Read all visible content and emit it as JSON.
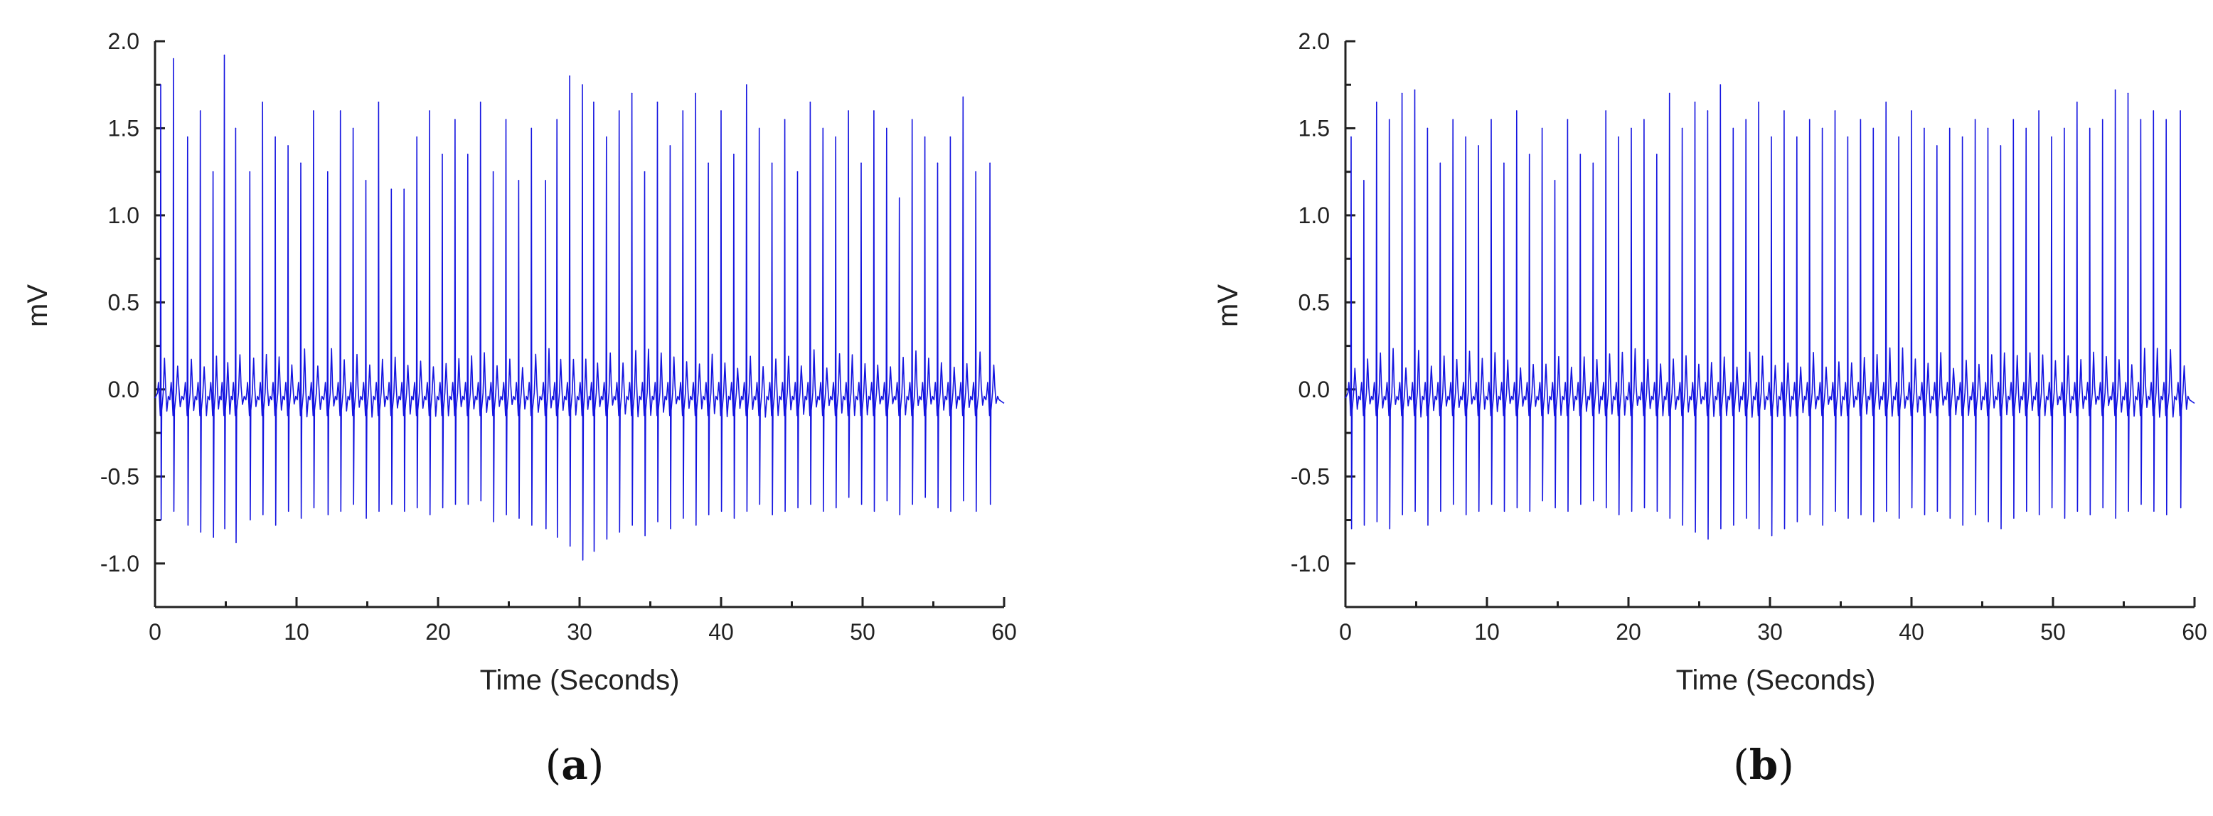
{
  "colors": {
    "signal": "#1414e0",
    "axis": "#222222"
  },
  "chart_data": [
    {
      "type": "line",
      "panel_label": {
        "open": "(",
        "letter": "a",
        "close": ")"
      },
      "xlabel": "Time (Seconds)",
      "ylabel": "mV",
      "xlim": [
        0,
        60
      ],
      "ylim": [
        -1.25,
        2.0
      ],
      "x_ticks": [
        "0",
        "10",
        "20",
        "30",
        "40",
        "50",
        "60"
      ],
      "y_ticks": [
        "-1.0",
        "-0.5",
        "0.0",
        "0.5",
        "1.0",
        "1.5",
        "2.0"
      ],
      "grid": false,
      "series": [
        {
          "beats": [
            {
              "t": 0.4,
              "r": 1.75,
              "s": -0.75
            },
            {
              "t": 1.3,
              "r": 1.9,
              "s": -0.7
            },
            {
              "t": 2.3,
              "r": 1.45,
              "s": -0.78
            },
            {
              "t": 3.2,
              "r": 1.6,
              "s": -0.82
            },
            {
              "t": 4.1,
              "r": 1.25,
              "s": -0.85
            },
            {
              "t": 4.9,
              "r": 1.92,
              "s": -0.8
            },
            {
              "t": 5.7,
              "r": 1.5,
              "s": -0.88
            },
            {
              "t": 6.7,
              "r": 1.25,
              "s": -0.75
            },
            {
              "t": 7.6,
              "r": 1.65,
              "s": -0.72
            },
            {
              "t": 8.5,
              "r": 1.45,
              "s": -0.78
            },
            {
              "t": 9.4,
              "r": 1.4,
              "s": -0.7
            },
            {
              "t": 10.3,
              "r": 1.3,
              "s": -0.74
            },
            {
              "t": 11.2,
              "r": 1.6,
              "s": -0.68
            },
            {
              "t": 12.2,
              "r": 1.25,
              "s": -0.72
            },
            {
              "t": 13.1,
              "r": 1.6,
              "s": -0.7
            },
            {
              "t": 14.0,
              "r": 1.5,
              "s": -0.66
            },
            {
              "t": 14.9,
              "r": 1.2,
              "s": -0.74
            },
            {
              "t": 15.8,
              "r": 1.65,
              "s": -0.7
            },
            {
              "t": 16.7,
              "r": 1.15,
              "s": -0.66
            },
            {
              "t": 17.6,
              "r": 1.15,
              "s": -0.7
            },
            {
              "t": 18.5,
              "r": 1.45,
              "s": -0.68
            },
            {
              "t": 19.4,
              "r": 1.6,
              "s": -0.72
            },
            {
              "t": 20.3,
              "r": 1.35,
              "s": -0.68
            },
            {
              "t": 21.2,
              "r": 1.55,
              "s": -0.66
            },
            {
              "t": 22.1,
              "r": 1.35,
              "s": -0.66
            },
            {
              "t": 23.0,
              "r": 1.65,
              "s": -0.64
            },
            {
              "t": 23.9,
              "r": 1.25,
              "s": -0.76
            },
            {
              "t": 24.8,
              "r": 1.55,
              "s": -0.72
            },
            {
              "t": 25.7,
              "r": 1.2,
              "s": -0.74
            },
            {
              "t": 26.6,
              "r": 1.5,
              "s": -0.78
            },
            {
              "t": 27.6,
              "r": 1.2,
              "s": -0.8
            },
            {
              "t": 28.4,
              "r": 1.55,
              "s": -0.85
            },
            {
              "t": 29.3,
              "r": 1.8,
              "s": -0.9
            },
            {
              "t": 30.2,
              "r": 1.75,
              "s": -0.98
            },
            {
              "t": 31.0,
              "r": 1.65,
              "s": -0.93
            },
            {
              "t": 31.9,
              "r": 1.45,
              "s": -0.86
            },
            {
              "t": 32.8,
              "r": 1.6,
              "s": -0.82
            },
            {
              "t": 33.7,
              "r": 1.7,
              "s": -0.78
            },
            {
              "t": 34.6,
              "r": 1.25,
              "s": -0.84
            },
            {
              "t": 35.5,
              "r": 1.65,
              "s": -0.76
            },
            {
              "t": 36.4,
              "r": 1.4,
              "s": -0.8
            },
            {
              "t": 37.3,
              "r": 1.6,
              "s": -0.74
            },
            {
              "t": 38.2,
              "r": 1.7,
              "s": -0.78
            },
            {
              "t": 39.1,
              "r": 1.3,
              "s": -0.72
            },
            {
              "t": 40.0,
              "r": 1.6,
              "s": -0.7
            },
            {
              "t": 40.9,
              "r": 1.35,
              "s": -0.74
            },
            {
              "t": 41.8,
              "r": 1.75,
              "s": -0.7
            },
            {
              "t": 42.7,
              "r": 1.5,
              "s": -0.66
            },
            {
              "t": 43.6,
              "r": 1.3,
              "s": -0.72
            },
            {
              "t": 44.5,
              "r": 1.55,
              "s": -0.7
            },
            {
              "t": 45.4,
              "r": 1.25,
              "s": -0.68
            },
            {
              "t": 46.3,
              "r": 1.65,
              "s": -0.66
            },
            {
              "t": 47.2,
              "r": 1.5,
              "s": -0.7
            },
            {
              "t": 48.1,
              "r": 1.45,
              "s": -0.68
            },
            {
              "t": 49.0,
              "r": 1.6,
              "s": -0.62
            },
            {
              "t": 49.9,
              "r": 1.3,
              "s": -0.66
            },
            {
              "t": 50.8,
              "r": 1.6,
              "s": -0.7
            },
            {
              "t": 51.7,
              "r": 1.5,
              "s": -0.64
            },
            {
              "t": 52.6,
              "r": 1.1,
              "s": -0.72
            },
            {
              "t": 53.5,
              "r": 1.55,
              "s": -0.66
            },
            {
              "t": 54.4,
              "r": 1.45,
              "s": -0.62
            },
            {
              "t": 55.3,
              "r": 1.3,
              "s": -0.68
            },
            {
              "t": 56.2,
              "r": 1.45,
              "s": -0.7
            },
            {
              "t": 57.1,
              "r": 1.68,
              "s": -0.64
            },
            {
              "t": 58.0,
              "r": 1.25,
              "s": -0.7
            },
            {
              "t": 59.0,
              "r": 1.3,
              "s": -0.66
            }
          ]
        }
      ]
    },
    {
      "type": "line",
      "panel_label": {
        "open": "(",
        "letter": "b",
        "close": ")"
      },
      "xlabel": "Time (Seconds)",
      "ylabel": "mV",
      "xlim": [
        0,
        60
      ],
      "ylim": [
        -1.25,
        2.0
      ],
      "x_ticks": [
        "0",
        "10",
        "20",
        "30",
        "40",
        "50",
        "60"
      ],
      "y_ticks": [
        "-1.0",
        "-0.5",
        "0.0",
        "0.5",
        "1.0",
        "1.5",
        "2.0"
      ],
      "grid": false,
      "series": [
        {
          "beats": [
            {
              "t": 0.4,
              "r": 1.45,
              "s": -0.8
            },
            {
              "t": 1.3,
              "r": 1.2,
              "s": -0.78
            },
            {
              "t": 2.2,
              "r": 1.65,
              "s": -0.76
            },
            {
              "t": 3.1,
              "r": 1.55,
              "s": -0.8
            },
            {
              "t": 4.0,
              "r": 1.7,
              "s": -0.72
            },
            {
              "t": 4.9,
              "r": 1.72,
              "s": -0.7
            },
            {
              "t": 5.8,
              "r": 1.5,
              "s": -0.78
            },
            {
              "t": 6.7,
              "r": 1.3,
              "s": -0.7
            },
            {
              "t": 7.6,
              "r": 1.55,
              "s": -0.66
            },
            {
              "t": 8.5,
              "r": 1.45,
              "s": -0.72
            },
            {
              "t": 9.4,
              "r": 1.4,
              "s": -0.7
            },
            {
              "t": 10.3,
              "r": 1.55,
              "s": -0.66
            },
            {
              "t": 11.2,
              "r": 1.3,
              "s": -0.7
            },
            {
              "t": 12.1,
              "r": 1.6,
              "s": -0.68
            },
            {
              "t": 13.0,
              "r": 1.35,
              "s": -0.7
            },
            {
              "t": 13.9,
              "r": 1.5,
              "s": -0.64
            },
            {
              "t": 14.8,
              "r": 1.2,
              "s": -0.68
            },
            {
              "t": 15.7,
              "r": 1.55,
              "s": -0.7
            },
            {
              "t": 16.6,
              "r": 1.35,
              "s": -0.66
            },
            {
              "t": 17.5,
              "r": 1.3,
              "s": -0.64
            },
            {
              "t": 18.4,
              "r": 1.6,
              "s": -0.68
            },
            {
              "t": 19.3,
              "r": 1.45,
              "s": -0.72
            },
            {
              "t": 20.2,
              "r": 1.5,
              "s": -0.7
            },
            {
              "t": 21.1,
              "r": 1.55,
              "s": -0.68
            },
            {
              "t": 22.0,
              "r": 1.35,
              "s": -0.7
            },
            {
              "t": 22.9,
              "r": 1.7,
              "s": -0.74
            },
            {
              "t": 23.8,
              "r": 1.5,
              "s": -0.78
            },
            {
              "t": 24.7,
              "r": 1.65,
              "s": -0.82
            },
            {
              "t": 25.6,
              "r": 1.6,
              "s": -0.86
            },
            {
              "t": 26.5,
              "r": 1.75,
              "s": -0.8
            },
            {
              "t": 27.4,
              "r": 1.5,
              "s": -0.78
            },
            {
              "t": 28.3,
              "r": 1.55,
              "s": -0.74
            },
            {
              "t": 29.2,
              "r": 1.65,
              "s": -0.8
            },
            {
              "t": 30.1,
              "r": 1.45,
              "s": -0.84
            },
            {
              "t": 31.0,
              "r": 1.6,
              "s": -0.8
            },
            {
              "t": 31.9,
              "r": 1.45,
              "s": -0.76
            },
            {
              "t": 32.8,
              "r": 1.55,
              "s": -0.72
            },
            {
              "t": 33.7,
              "r": 1.5,
              "s": -0.78
            },
            {
              "t": 34.6,
              "r": 1.6,
              "s": -0.7
            },
            {
              "t": 35.5,
              "r": 1.45,
              "s": -0.74
            },
            {
              "t": 36.4,
              "r": 1.55,
              "s": -0.72
            },
            {
              "t": 37.3,
              "r": 1.5,
              "s": -0.76
            },
            {
              "t": 38.2,
              "r": 1.65,
              "s": -0.7
            },
            {
              "t": 39.1,
              "r": 1.45,
              "s": -0.74
            },
            {
              "t": 40.0,
              "r": 1.6,
              "s": -0.68
            },
            {
              "t": 40.9,
              "r": 1.5,
              "s": -0.72
            },
            {
              "t": 41.8,
              "r": 1.4,
              "s": -0.7
            },
            {
              "t": 42.7,
              "r": 1.5,
              "s": -0.74
            },
            {
              "t": 43.6,
              "r": 1.45,
              "s": -0.78
            },
            {
              "t": 44.5,
              "r": 1.55,
              "s": -0.72
            },
            {
              "t": 45.4,
              "r": 1.5,
              "s": -0.76
            },
            {
              "t": 46.3,
              "r": 1.4,
              "s": -0.8
            },
            {
              "t": 47.2,
              "r": 1.55,
              "s": -0.74
            },
            {
              "t": 48.1,
              "r": 1.5,
              "s": -0.7
            },
            {
              "t": 49.0,
              "r": 1.6,
              "s": -0.72
            },
            {
              "t": 49.9,
              "r": 1.45,
              "s": -0.68
            },
            {
              "t": 50.8,
              "r": 1.5,
              "s": -0.74
            },
            {
              "t": 51.7,
              "r": 1.65,
              "s": -0.7
            },
            {
              "t": 52.6,
              "r": 1.5,
              "s": -0.72
            },
            {
              "t": 53.5,
              "r": 1.55,
              "s": -0.68
            },
            {
              "t": 54.4,
              "r": 1.72,
              "s": -0.74
            },
            {
              "t": 55.3,
              "r": 1.7,
              "s": -0.7
            },
            {
              "t": 56.2,
              "r": 1.55,
              "s": -0.66
            },
            {
              "t": 57.1,
              "r": 1.6,
              "s": -0.7
            },
            {
              "t": 58.0,
              "r": 1.55,
              "s": -0.72
            },
            {
              "t": 59.0,
              "r": 1.6,
              "s": -0.68
            }
          ]
        }
      ]
    }
  ]
}
